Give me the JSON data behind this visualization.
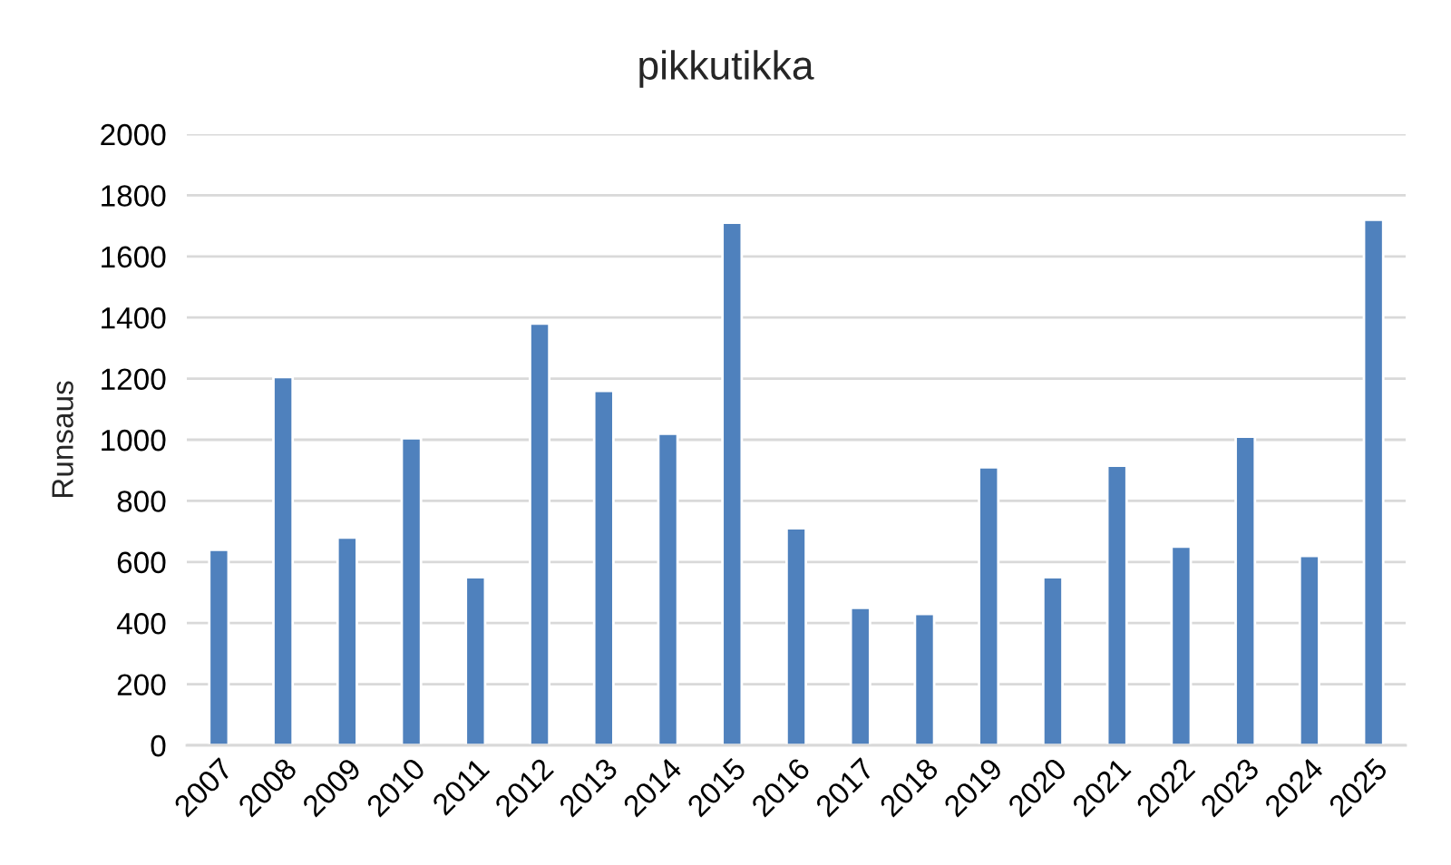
{
  "chart_data": {
    "type": "bar",
    "title": "pikkutikka",
    "ylabel": "Runsaus",
    "categories": [
      "2007",
      "2008",
      "2009",
      "2010",
      "2011",
      "2012",
      "2013",
      "2014",
      "2015",
      "2016",
      "2017",
      "2018",
      "2019",
      "2020",
      "2021",
      "2022",
      "2023",
      "2024",
      "2025"
    ],
    "values": [
      640,
      1205,
      680,
      1005,
      550,
      1380,
      1160,
      1020,
      1710,
      710,
      450,
      430,
      910,
      550,
      915,
      650,
      1010,
      620,
      1720
    ],
    "color": "#4f81bd",
    "ylim": [
      0,
      2000
    ],
    "yticks": [
      0,
      200,
      400,
      600,
      800,
      1000,
      1200,
      1400,
      1600,
      1800,
      2000
    ],
    "grid": "y",
    "legend": false
  }
}
